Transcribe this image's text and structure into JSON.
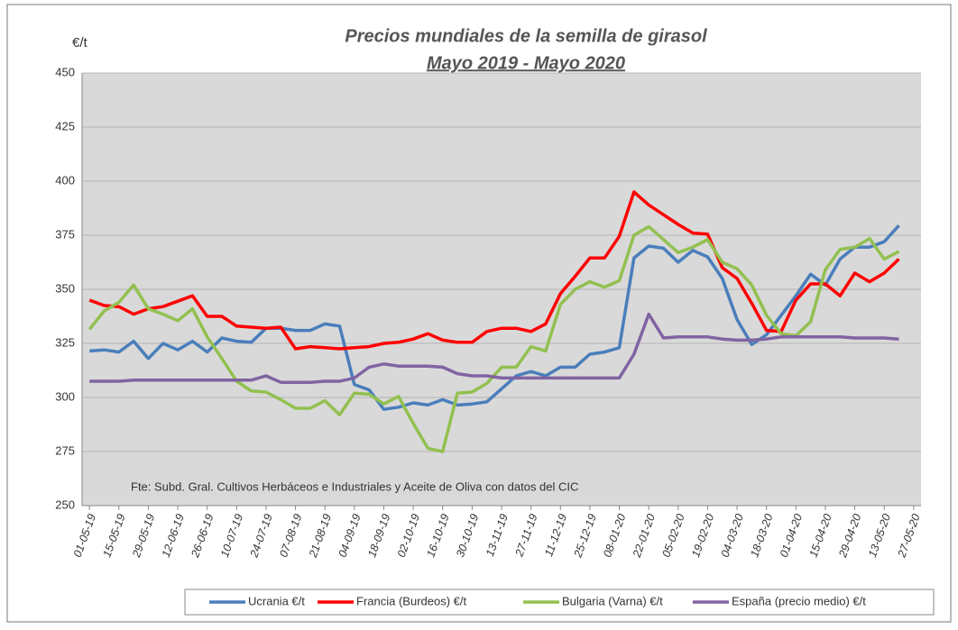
{
  "chart_data": {
    "type": "line",
    "title": "Precios mundiales de la semilla de girasol",
    "subtitle": "Mayo 2019 - Mayo 2020",
    "y_label": "€/t",
    "annotation": "Fte: Subd. Gral. Cultivos Herbáceos e Industriales y Aceite de Oliva con datos del CIC",
    "categories": [
      "01-05-19",
      null,
      "15-05-19",
      null,
      "29-05-19",
      null,
      "12-06-19",
      null,
      "26-06-19",
      null,
      "10-07-19",
      null,
      "24-07-19",
      null,
      "07-08-19",
      null,
      "21-08-19",
      null,
      "04-09-19",
      null,
      "18-09-19",
      null,
      "02-10-19",
      null,
      "16-10-19",
      null,
      "30-10-19",
      null,
      "13-11-19",
      null,
      "27-11-19",
      null,
      "11-12-19",
      null,
      "25-12-19",
      null,
      "08-01-20",
      null,
      "22-01-20",
      null,
      "05-02-20",
      null,
      "19-02-20",
      null,
      "04-03-20",
      null,
      "18-03-20",
      null,
      "01-04-20",
      null,
      "15-04-20",
      null,
      "29-04-20",
      null,
      "13-05-20",
      null,
      "27-05-20"
    ],
    "series": [
      {
        "name": "Ucrania €/t",
        "color": "#4a7ebb",
        "values": [
          321.5,
          322,
          321,
          326,
          318,
          325,
          322,
          326,
          321,
          327.5,
          326,
          325.5,
          332,
          332,
          331,
          331,
          334,
          333,
          306,
          303.5,
          294.5,
          295.5,
          297.5,
          296.5,
          299,
          296.5,
          297,
          298,
          304,
          310,
          312,
          310,
          314,
          314,
          320,
          321,
          323,
          364.5,
          370,
          369,
          362.5,
          368,
          365,
          355,
          336,
          324.5,
          329,
          338,
          347,
          357,
          352,
          364,
          369.5,
          369.5,
          372,
          379.5,
          null
        ]
      },
      {
        "name": "Francia (Burdeos) €/t",
        "color": "#ff0000",
        "values": [
          345,
          342.5,
          342,
          338.5,
          341,
          342,
          344.5,
          347,
          337.5,
          337.5,
          333,
          332.5,
          332,
          332.5,
          322.5,
          323.5,
          323,
          322.5,
          323,
          323.5,
          325,
          325.5,
          327,
          329.5,
          326.5,
          325.5,
          325.5,
          330.5,
          332,
          332,
          330.5,
          334,
          348,
          356,
          364.5,
          364.5,
          374.5,
          395,
          389,
          384.5,
          380,
          376,
          375.5,
          360,
          355,
          343.5,
          331,
          330.5,
          345,
          352.5,
          352.5,
          347,
          357.5,
          353.5,
          357.5,
          364,
          null
        ]
      },
      {
        "name": "Bulgaria (Varna) €/t",
        "color": "#92c050",
        "values": [
          331.5,
          340,
          344,
          352,
          341,
          338.5,
          335.5,
          341,
          328,
          318,
          307.5,
          303,
          302.5,
          299,
          295,
          295,
          298.5,
          292,
          302,
          301.5,
          297,
          300.5,
          288,
          276.5,
          275,
          302,
          302.5,
          306.5,
          314,
          314,
          323.5,
          321.5,
          343,
          350,
          353.5,
          351,
          354,
          375,
          379,
          373,
          367,
          369.5,
          373,
          362.5,
          359.5,
          352,
          338,
          329.5,
          328.5,
          335,
          359,
          368.5,
          369.5,
          373.5,
          364,
          367.5,
          null
        ]
      },
      {
        "name": "España (precio medio) €/t",
        "color": "#8064a2",
        "values": [
          307.5,
          307.5,
          307.5,
          308,
          308,
          308,
          308,
          308,
          308,
          308,
          308,
          308,
          310,
          307,
          307,
          307,
          307.5,
          307.5,
          309,
          314,
          315.5,
          314.5,
          314.5,
          314.5,
          314,
          311,
          310,
          310,
          309,
          309,
          309,
          309,
          309,
          309,
          309,
          309,
          309,
          320,
          338.5,
          327.5,
          328,
          328,
          328,
          327,
          326.5,
          326.5,
          327,
          328,
          328,
          328,
          328,
          328,
          327.5,
          327.5,
          327.5,
          327,
          null
        ]
      }
    ],
    "ylim": [
      250,
      450
    ],
    "yticks": [
      250,
      275,
      300,
      325,
      350,
      375,
      400,
      425,
      450
    ],
    "grid": true
  }
}
